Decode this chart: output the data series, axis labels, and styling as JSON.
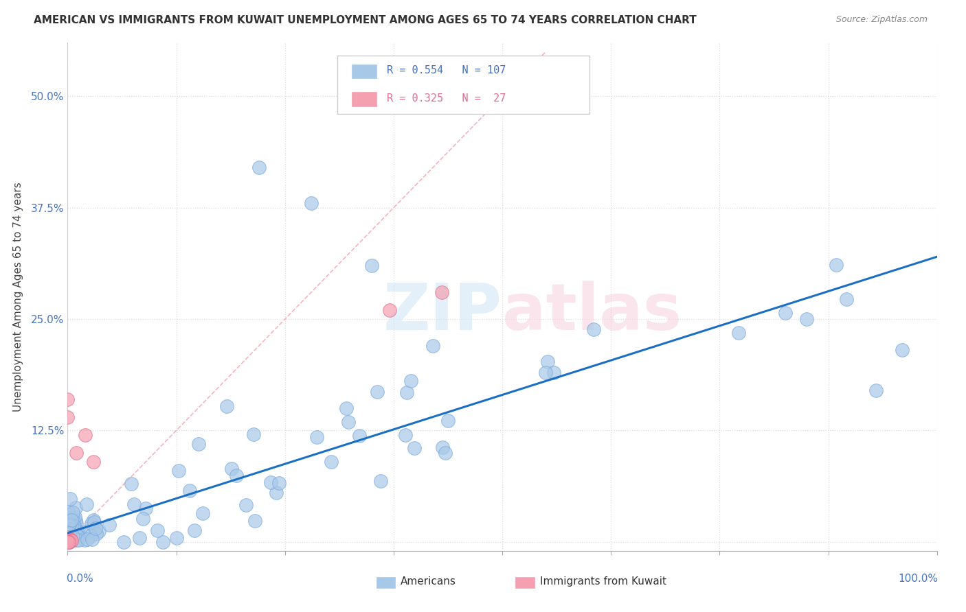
{
  "title": "AMERICAN VS IMMIGRANTS FROM KUWAIT UNEMPLOYMENT AMONG AGES 65 TO 74 YEARS CORRELATION CHART",
  "source": "Source: ZipAtlas.com",
  "ylabel": "Unemployment Among Ages 65 to 74 years",
  "xlim": [
    0,
    1.0
  ],
  "ylim": [
    -0.01,
    0.56
  ],
  "yticks": [
    0.0,
    0.125,
    0.25,
    0.375,
    0.5
  ],
  "ytick_labels": [
    "",
    "12.5%",
    "25.0%",
    "37.5%",
    "50.0%"
  ],
  "R_americans": 0.554,
  "N_americans": 107,
  "R_kuwait": 0.325,
  "N_kuwait": 27,
  "american_color": "#a8c8e8",
  "american_edge": "#7aabe0",
  "kuwait_color": "#f4a0b0",
  "kuwait_edge": "#e07090",
  "regression_color": "#1a6fc4",
  "diagonal_color": "#f4a0b0",
  "grid_color": "#dddddd",
  "title_color": "#333333",
  "tick_color": "#4472c4",
  "watermark_color": "#cce5f5",
  "regression_intercept": 0.01,
  "regression_slope": 0.31
}
